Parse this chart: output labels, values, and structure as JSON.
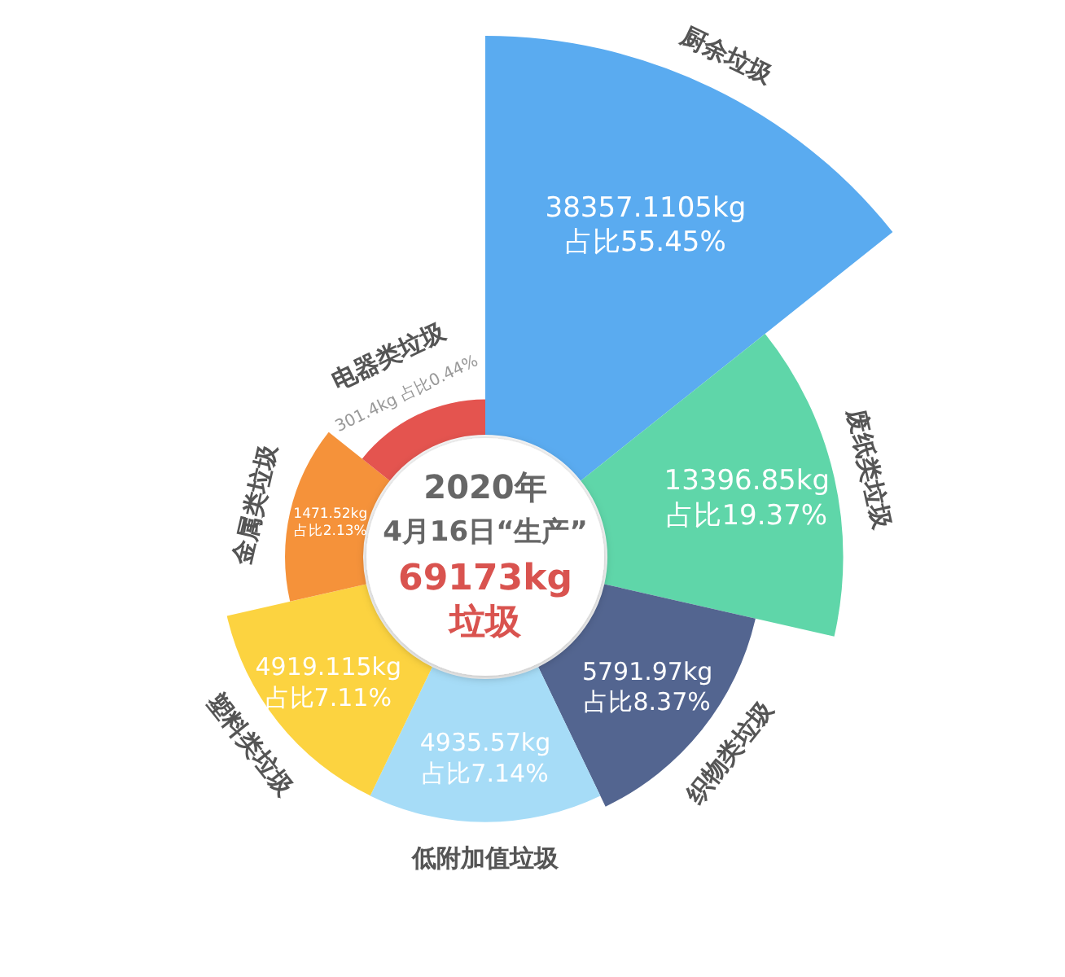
{
  "chart_data": {
    "type": "other",
    "title": "2020年",
    "subtitle": "4月16日“生产”",
    "annotations": [
      "69173kg",
      "垃圾"
    ],
    "categories": [
      "厨余垃圾",
      "废纸类垃圾",
      "织物类垃圾",
      "低附加值垃圾",
      "塑料类垃圾",
      "金属类垃圾",
      "电器类垃圾"
    ],
    "values": [
      38357.1105,
      13396.85,
      5791.97,
      4935.57,
      4919.115,
      1471.52,
      301.4
    ],
    "value_labels": [
      "38357.1105kg\n占比55.45%",
      "13396.85kg\n占比19.37%",
      "5791.97kg\n占比8.37%",
      "4935.57kg\n占比7.14%",
      "4919.115kg\n占比7.11%",
      "1471.52kg\n占比2.13%",
      "301.4kg\n占比0.44%"
    ],
    "colors": [
      "#5aabf0",
      "#5fd6a9",
      "#536590",
      "#a6dcf7",
      "#fcd340",
      "#f5923a",
      "#e4544f"
    ]
  }
}
